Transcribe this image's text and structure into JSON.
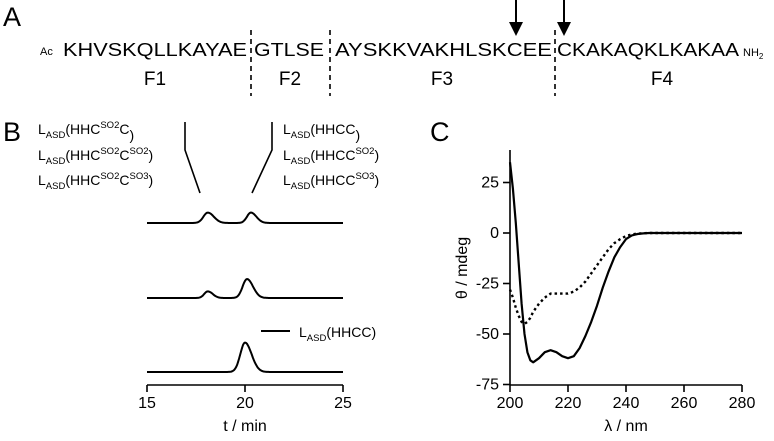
{
  "panelA": {
    "label": "A",
    "n_term": "Ac",
    "c_term": "NH",
    "c_term_sub": "2",
    "segments": [
      {
        "seq": "KHVSKQLLKAYAE",
        "name": "F1"
      },
      {
        "seq": "GTLSE",
        "name": "F2"
      },
      {
        "seq": "AYSKKVAKHLSKCEE",
        "name": "F3"
      },
      {
        "seq": "CKAKAQKLKAKAA",
        "name": "F4"
      }
    ]
  },
  "panelB": {
    "label": "B",
    "left_labels": [
      {
        "base": "L",
        "sub": "ASD",
        "body": "(HHC",
        "sup1": "SO2",
        "mid": "C",
        "sup2": "",
        "end": ")"
      },
      {
        "base": "L",
        "sub": "ASD",
        "body": "(HHC",
        "sup1": "SO2",
        "mid": "C",
        "sup2": "SO2",
        "end": ")"
      },
      {
        "base": "L",
        "sub": "ASD",
        "body": "(HHC",
        "sup1": "SO2",
        "mid": "C",
        "sup2": "SO3",
        "end": ")"
      }
    ],
    "right_labels": [
      {
        "base": "L",
        "sub": "ASD",
        "body": "(HHCC",
        "sup": "",
        "end": ")"
      },
      {
        "base": "L",
        "sub": "ASD",
        "body": "(HHCC",
        "sup": "SO2",
        "end": ")"
      },
      {
        "base": "L",
        "sub": "ASD",
        "body": "(HHCC",
        "sup": "SO3",
        "end": ")"
      }
    ],
    "legend": {
      "base": "L",
      "sub": "ASD",
      "body": "(HHCC)"
    },
    "xlabel": "t / min",
    "xticks": [
      "15",
      "20",
      "25"
    ]
  },
  "panelC": {
    "label": "C",
    "ylabel": "θ / mdeg",
    "xlabel": "λ / nm",
    "xticks": [
      "200",
      "220",
      "240",
      "260",
      "280"
    ],
    "yticks": [
      "25",
      "0",
      "-25",
      "-50",
      "-75"
    ]
  },
  "chart_data": [
    {
      "type": "line",
      "panel": "B",
      "xlabel": "t / min",
      "xlim": [
        15,
        25
      ],
      "series": [
        {
          "peaks": [
            {
              "x": 18.1,
              "height": 0.55,
              "width": 0.22
            },
            {
              "x": 20.3,
              "height": 0.55,
              "width": 0.2
            }
          ]
        },
        {
          "peaks": [
            {
              "x": 18.1,
              "height": 0.35,
              "width": 0.18
            },
            {
              "x": 20.1,
              "height": 1.0,
              "width": 0.22
            }
          ]
        },
        {
          "peaks": [
            {
              "x": 20.0,
              "height": 1.55,
              "width": 0.24
            }
          ]
        }
      ]
    },
    {
      "type": "line",
      "panel": "C",
      "xlabel": "λ / nm",
      "ylabel": "θ / mdeg",
      "xlim": [
        200,
        280
      ],
      "ylim": [
        -75,
        40
      ],
      "series": [
        {
          "style": "solid",
          "x": [
            200,
            201,
            202,
            203,
            204,
            205,
            206,
            207,
            208,
            210,
            212,
            214,
            216,
            218,
            220,
            222,
            224,
            226,
            228,
            230,
            232,
            234,
            236,
            238,
            240,
            242,
            244,
            246,
            248,
            250,
            260,
            270,
            280
          ],
          "y": [
            35,
            22,
            5,
            -15,
            -35,
            -50,
            -59,
            -63,
            -64,
            -62,
            -59,
            -58,
            -59,
            -61,
            -62,
            -61,
            -57,
            -51,
            -44,
            -36,
            -27,
            -19,
            -12,
            -7,
            -3,
            -1.2,
            -0.5,
            -0.2,
            0,
            0,
            0,
            0,
            0
          ]
        },
        {
          "style": "dotted",
          "x": [
            200,
            201,
            202,
            203,
            204,
            205,
            206,
            207,
            208,
            210,
            212,
            214,
            216,
            218,
            220,
            222,
            224,
            226,
            228,
            230,
            232,
            234,
            236,
            238,
            240,
            242,
            244,
            246,
            248,
            250,
            260,
            270,
            280
          ],
          "y": [
            -28,
            -32,
            -37,
            -41,
            -44,
            -45,
            -44,
            -42,
            -39,
            -35,
            -32,
            -30,
            -30,
            -30,
            -30,
            -29,
            -27,
            -24,
            -20,
            -16,
            -12,
            -8,
            -5,
            -3,
            -1.5,
            -0.7,
            -0.3,
            -0.1,
            0,
            0,
            0,
            0,
            0
          ]
        }
      ]
    }
  ]
}
